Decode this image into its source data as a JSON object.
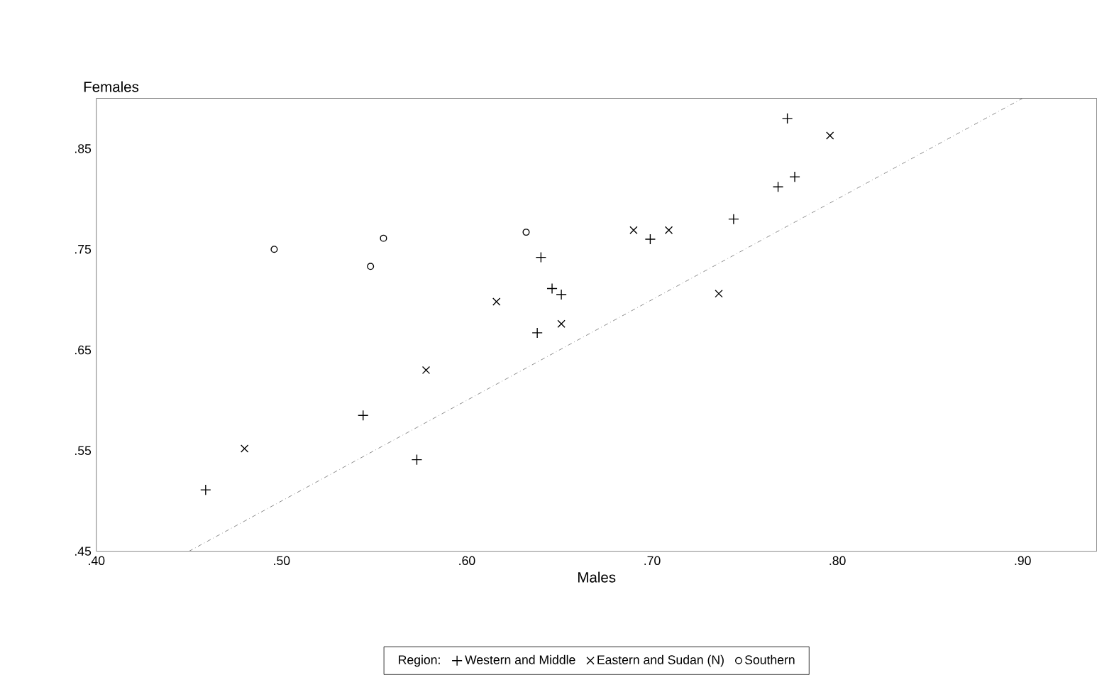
{
  "chart_data": {
    "type": "scatter",
    "xlabel": "Males",
    "ylabel": "Females",
    "legend_title": "Region:",
    "legend": "bottom",
    "xlim": [
      0.4,
      0.94
    ],
    "ylim": [
      0.45,
      0.9
    ],
    "xticks": [
      {
        "value": 0.4,
        "label": ".40"
      },
      {
        "value": 0.5,
        "label": ".50"
      },
      {
        "value": 0.6,
        "label": ".60"
      },
      {
        "value": 0.7,
        "label": ".70"
      },
      {
        "value": 0.8,
        "label": ".80"
      },
      {
        "value": 0.9,
        "label": ".90"
      }
    ],
    "yticks": [
      {
        "value": 0.45,
        "label": ".45"
      },
      {
        "value": 0.55,
        "label": ".55"
      },
      {
        "value": 0.65,
        "label": ".65"
      },
      {
        "value": 0.75,
        "label": ".75"
      },
      {
        "value": 0.85,
        "label": ".85"
      }
    ],
    "series": [
      {
        "name": "Western and Middle",
        "color": "#000000",
        "marker": "plus",
        "x": [
          0.459,
          0.544,
          0.573,
          0.638,
          0.64,
          0.646,
          0.651,
          0.699,
          0.744,
          0.768,
          0.777,
          0.773
        ],
        "values": [
          0.511,
          0.585,
          0.541,
          0.667,
          0.742,
          0.711,
          0.705,
          0.76,
          0.78,
          0.812,
          0.822,
          0.88
        ]
      },
      {
        "name": "Eastern and Sudan (N)",
        "color": "#000000",
        "marker": "cross",
        "x": [
          0.48,
          0.578,
          0.616,
          0.651,
          0.69,
          0.709,
          0.736,
          0.796
        ],
        "values": [
          0.552,
          0.63,
          0.698,
          0.676,
          0.769,
          0.769,
          0.706,
          0.863
        ]
      },
      {
        "name": "Southern",
        "color": "#000000",
        "marker": "circle",
        "x": [
          0.496,
          0.548,
          0.555,
          0.632
        ],
        "values": [
          0.75,
          0.733,
          0.761,
          0.767
        ]
      },
      {
        "type": "line",
        "color": "#888888",
        "line_style": "dashdotted",
        "marker": "none",
        "x": [
          0.45,
          0.9
        ],
        "values": [
          0.45,
          0.9
        ]
      }
    ]
  }
}
